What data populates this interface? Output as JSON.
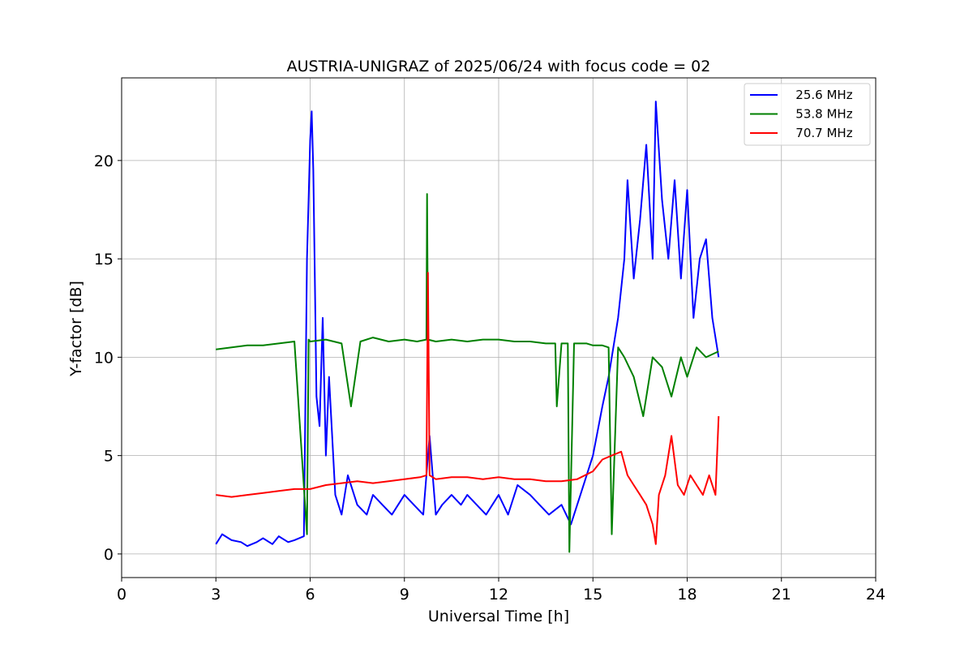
{
  "chart_data": {
    "type": "line",
    "title": "AUSTRIA-UNIGRAZ of 2025/06/24 with focus code = 02",
    "xlabel": "Universal Time [h]",
    "ylabel": "Y-factor [dB]",
    "xlim": [
      0,
      24
    ],
    "ylim": [
      -1.2,
      24.2
    ],
    "xticks": [
      0,
      3,
      6,
      9,
      12,
      15,
      18,
      21,
      24
    ],
    "yticks": [
      0,
      5,
      10,
      15,
      20
    ],
    "grid": true,
    "legend": "top-right",
    "series": [
      {
        "name": "   25.6 MHz",
        "color": "#0000ff",
        "x": [
          3.0,
          3.2,
          3.5,
          3.8,
          4.0,
          4.3,
          4.5,
          4.8,
          5.0,
          5.3,
          5.5,
          5.8,
          5.9,
          5.95,
          6.0,
          6.05,
          6.1,
          6.15,
          6.2,
          6.3,
          6.4,
          6.5,
          6.6,
          6.8,
          7.0,
          7.2,
          7.5,
          7.8,
          8.0,
          8.3,
          8.6,
          9.0,
          9.3,
          9.6,
          9.8,
          10.0,
          10.2,
          10.5,
          10.8,
          11.0,
          11.3,
          11.6,
          12.0,
          12.3,
          12.6,
          13.0,
          13.3,
          13.6,
          14.0,
          14.3,
          14.6,
          15.0,
          15.3,
          15.5,
          15.8,
          16.0,
          16.1,
          16.3,
          16.5,
          16.7,
          16.9,
          17.0,
          17.2,
          17.4,
          17.6,
          17.8,
          18.0,
          18.2,
          18.4,
          18.6,
          18.8,
          19.0
        ],
        "y": [
          0.5,
          1.0,
          0.7,
          0.6,
          0.4,
          0.6,
          0.8,
          0.5,
          0.9,
          0.6,
          0.7,
          0.9,
          15.0,
          18.0,
          21.0,
          22.5,
          19.5,
          14.0,
          8.0,
          6.5,
          12.0,
          5.0,
          9.0,
          3.0,
          2.0,
          4.0,
          2.5,
          2.0,
          3.0,
          2.5,
          2.0,
          3.0,
          2.5,
          2.0,
          6.0,
          2.0,
          2.5,
          3.0,
          2.5,
          3.0,
          2.5,
          2.0,
          3.0,
          2.0,
          3.5,
          3.0,
          2.5,
          2.0,
          2.5,
          1.5,
          3.0,
          5.0,
          7.5,
          9.0,
          12.0,
          15.0,
          19.0,
          14.0,
          17.0,
          20.8,
          15.0,
          23.0,
          18.0,
          15.0,
          19.0,
          14.0,
          18.5,
          12.0,
          15.0,
          16.0,
          12.0,
          10.0
        ]
      },
      {
        "name": "   53.8 MHz",
        "color": "#008000",
        "x": [
          3.0,
          3.5,
          4.0,
          4.5,
          5.0,
          5.5,
          5.9,
          5.95,
          6.0,
          6.5,
          7.0,
          7.3,
          7.6,
          8.0,
          8.5,
          9.0,
          9.4,
          9.7,
          9.72,
          9.75,
          10.0,
          10.5,
          11.0,
          11.5,
          12.0,
          12.5,
          13.0,
          13.5,
          13.8,
          13.85,
          14.0,
          14.2,
          14.25,
          14.4,
          14.8,
          15.0,
          15.3,
          15.5,
          15.6,
          15.8,
          16.0,
          16.3,
          16.6,
          16.9,
          17.2,
          17.5,
          17.8,
          18.0,
          18.3,
          18.6,
          19.0
        ],
        "y": [
          10.4,
          10.5,
          10.6,
          10.6,
          10.7,
          10.8,
          1.0,
          10.9,
          10.8,
          10.9,
          10.7,
          7.5,
          10.8,
          11.0,
          10.8,
          10.9,
          10.8,
          10.9,
          18.3,
          10.9,
          10.8,
          10.9,
          10.8,
          10.9,
          10.9,
          10.8,
          10.8,
          10.7,
          10.7,
          7.5,
          10.7,
          10.7,
          0.1,
          10.7,
          10.7,
          10.6,
          10.6,
          10.5,
          1.0,
          10.5,
          10.0,
          9.0,
          7.0,
          10.0,
          9.5,
          8.0,
          10.0,
          9.0,
          10.5,
          10.0,
          10.3
        ]
      },
      {
        "name": "   70.7 MHz",
        "color": "#ff0000",
        "x": [
          3.0,
          3.5,
          4.0,
          4.5,
          5.0,
          5.5,
          6.0,
          6.5,
          7.0,
          7.5,
          8.0,
          8.5,
          9.0,
          9.5,
          9.7,
          9.75,
          9.8,
          10.0,
          10.5,
          11.0,
          11.5,
          12.0,
          12.5,
          13.0,
          13.5,
          14.0,
          14.5,
          15.0,
          15.3,
          15.6,
          15.9,
          16.1,
          16.3,
          16.5,
          16.7,
          16.9,
          17.0,
          17.1,
          17.3,
          17.5,
          17.7,
          17.9,
          18.1,
          18.3,
          18.5,
          18.7,
          18.9,
          19.0
        ],
        "y": [
          3.0,
          2.9,
          3.0,
          3.1,
          3.2,
          3.3,
          3.3,
          3.5,
          3.6,
          3.7,
          3.6,
          3.7,
          3.8,
          3.9,
          4.0,
          14.3,
          4.0,
          3.8,
          3.9,
          3.9,
          3.8,
          3.9,
          3.8,
          3.8,
          3.7,
          3.7,
          3.8,
          4.2,
          4.8,
          5.0,
          5.2,
          4.0,
          3.5,
          3.0,
          2.5,
          1.5,
          0.5,
          3.0,
          4.0,
          6.0,
          3.5,
          3.0,
          4.0,
          3.5,
          3.0,
          4.0,
          3.0,
          7.0
        ]
      }
    ]
  }
}
